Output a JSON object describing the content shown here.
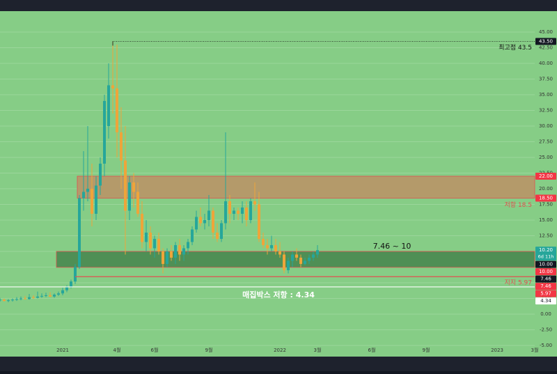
{
  "chart_data": {
    "type": "candlestick",
    "up_color": "#26a69a",
    "down_color": "#eea53a",
    "background": "#86cd86",
    "grid": true,
    "x": [
      -15,
      -14,
      -13,
      -12,
      -11,
      -10,
      -9,
      -8,
      -7,
      -6,
      -5,
      -4,
      -3,
      -2,
      -1,
      0,
      1,
      2,
      3,
      4,
      5,
      6,
      7,
      8,
      9,
      10,
      11,
      12,
      13,
      14,
      15,
      16,
      17,
      18,
      19,
      20,
      21,
      22,
      23,
      24,
      25,
      26,
      27,
      28,
      29,
      30,
      31,
      32,
      33,
      34,
      35,
      36,
      37,
      38,
      39,
      40,
      41,
      42,
      43,
      44,
      45,
      46,
      47,
      48,
      49,
      50,
      51,
      52,
      53,
      54,
      55,
      56,
      57,
      58,
      59,
      60,
      61
    ],
    "open": [
      2.2,
      2.3,
      2.1,
      2.2,
      2.3,
      2.4,
      2.5,
      2.4,
      2.7,
      2.6,
      2.8,
      2.9,
      3.0,
      2.8,
      3.1,
      3.3,
      3.8,
      4.3,
      5.2,
      7.5,
      18.5,
      19.5,
      20.0,
      16.0,
      20.5,
      24.0,
      30.0,
      36.5,
      36.0,
      29.0,
      24.5,
      16.5,
      21.0,
      19.5,
      16.0,
      11.5,
      13.0,
      10.5,
      12.0,
      10.0,
      8.0,
      10.0,
      9.0,
      11.0,
      9.5,
      10.5,
      11.5,
      13.5,
      15.5,
      14.5,
      15.0,
      16.5,
      13.0,
      12.0,
      14.5,
      18.0,
      16.0,
      16.5,
      16.0,
      17.0,
      15.0,
      18.0,
      17.5,
      12.0,
      11.0,
      10.5,
      11.0,
      10.0,
      9.5,
      7.0,
      8.5,
      9.5,
      9.0,
      8.0,
      8.5,
      9.0,
      9.5
    ],
    "high": [
      2.6,
      2.5,
      2.4,
      2.5,
      2.7,
      2.8,
      2.9,
      3.2,
      3.0,
      3.6,
      3.3,
      3.4,
      3.5,
      3.3,
      3.6,
      4.2,
      4.6,
      5.5,
      8.0,
      19.0,
      26.0,
      30.0,
      24.0,
      22.0,
      25.0,
      35.0,
      40.0,
      43.5,
      43.0,
      33.0,
      30.0,
      22.0,
      22.5,
      21.0,
      18.0,
      15.0,
      14.0,
      12.5,
      13.0,
      10.5,
      10.5,
      11.0,
      11.5,
      12.0,
      11.0,
      12.0,
      14.0,
      16.5,
      17.0,
      16.0,
      19.0,
      17.0,
      14.5,
      15.0,
      29.0,
      19.0,
      17.0,
      17.0,
      18.0,
      18.0,
      18.5,
      21.0,
      19.5,
      13.0,
      12.0,
      12.5,
      12.0,
      11.5,
      10.0,
      9.0,
      10.0,
      10.5,
      9.5,
      9.0,
      9.5,
      10.0,
      11.0
    ],
    "low": [
      2.0,
      2.0,
      1.9,
      2.0,
      2.1,
      2.2,
      2.3,
      2.3,
      2.4,
      2.5,
      2.6,
      2.7,
      2.7,
      2.6,
      2.9,
      3.0,
      3.5,
      4.1,
      4.8,
      7.2,
      16.5,
      18.0,
      14.0,
      15.0,
      19.0,
      22.0,
      28.0,
      32.0,
      25.0,
      20.0,
      9.5,
      15.0,
      17.0,
      15.5,
      10.5,
      10.0,
      9.5,
      9.0,
      9.5,
      6.5,
      7.5,
      8.5,
      8.0,
      8.5,
      8.5,
      9.5,
      11.0,
      13.0,
      14.0,
      13.5,
      14.0,
      12.0,
      11.5,
      11.5,
      13.5,
      14.5,
      15.0,
      15.0,
      14.5,
      14.0,
      14.5,
      16.5,
      11.5,
      10.5,
      9.5,
      10.0,
      9.5,
      9.0,
      6.5,
      6.5,
      7.5,
      8.5,
      7.5,
      7.8,
      8.0,
      8.5,
      9.0
    ],
    "close": [
      2.3,
      2.1,
      2.2,
      2.3,
      2.4,
      2.5,
      2.4,
      2.7,
      2.6,
      2.8,
      2.9,
      3.0,
      2.8,
      3.1,
      3.3,
      3.8,
      4.3,
      5.2,
      7.5,
      18.5,
      19.5,
      20.0,
      16.0,
      20.5,
      24.0,
      34.0,
      36.5,
      36.0,
      29.0,
      24.5,
      16.5,
      21.0,
      19.5,
      16.0,
      11.5,
      13.0,
      10.5,
      12.0,
      10.0,
      8.0,
      10.0,
      9.0,
      11.0,
      9.5,
      10.5,
      11.5,
      13.5,
      15.5,
      14.5,
      15.0,
      16.5,
      13.0,
      12.0,
      14.5,
      18.0,
      16.0,
      16.5,
      16.0,
      17.0,
      15.0,
      18.0,
      17.5,
      12.0,
      11.0,
      10.5,
      11.0,
      10.0,
      9.5,
      7.0,
      8.5,
      9.5,
      9.0,
      8.0,
      8.5,
      9.0,
      9.5,
      10.2
    ],
    "xlim": [
      -15,
      113
    ],
    "xticks": [
      {
        "value": 0,
        "label": "2021"
      },
      {
        "value": 13,
        "label": "4월"
      },
      {
        "value": 22,
        "label": "6월"
      },
      {
        "value": 35,
        "label": "9월"
      },
      {
        "value": 52,
        "label": "2022"
      },
      {
        "value": 61,
        "label": "3월"
      },
      {
        "value": 74,
        "label": "6월"
      },
      {
        "value": 87,
        "label": "9월"
      },
      {
        "value": 104,
        "label": "2023"
      },
      {
        "value": 113,
        "label": "3월"
      }
    ],
    "ylim": [
      -6.78,
      48.33
    ],
    "yticks": [
      {
        "value": -5,
        "label": "-5.00"
      },
      {
        "value": -2.5,
        "label": "-2.50"
      },
      {
        "value": 0,
        "label": "0.00"
      },
      {
        "value": 2.5,
        "label": "2.50"
      },
      {
        "value": 5,
        "label": "5.00"
      },
      {
        "value": 7.5,
        "label": "7.50"
      },
      {
        "value": 10,
        "label": "10.00"
      },
      {
        "value": 12.5,
        "label": "12.50"
      },
      {
        "value": 15,
        "label": "15.00"
      },
      {
        "value": 17.5,
        "label": "17.50"
      },
      {
        "value": 20,
        "label": "20.00"
      },
      {
        "value": 22.5,
        "label": "22.50"
      },
      {
        "value": 25,
        "label": "25.00"
      },
      {
        "value": 27.5,
        "label": "27.50"
      },
      {
        "value": 30,
        "label": "30.00"
      },
      {
        "value": 32.5,
        "label": "32.50"
      },
      {
        "value": 35,
        "label": "35.00"
      },
      {
        "value": 37.5,
        "label": "37.50"
      },
      {
        "value": 40,
        "label": "40.00"
      },
      {
        "value": 42.5,
        "label": "42.50"
      },
      {
        "value": 45,
        "label": "45.00"
      }
    ],
    "zones": [
      {
        "low": 18.5,
        "high": 22,
        "start": 4,
        "color": "#b49a6a",
        "border": "#e05050",
        "text": "저항 18.5",
        "text_color": "#e05050"
      },
      {
        "low": 7.46,
        "high": 10,
        "start": -1,
        "color": "#4f8f55",
        "border": "#e05050",
        "text": "7.46 ~ 10",
        "text_color": "#111111"
      }
    ],
    "levels": [
      {
        "value": 43.5,
        "start": 12,
        "color": "#111111",
        "style": "dotted",
        "text": "최고점 43.5",
        "text_color": "#111111",
        "text_position": "right"
      },
      {
        "value": 5.97,
        "start": 3,
        "color": "#e05050",
        "style": "solid",
        "text": "지지 5.97",
        "text_color": "#e05050",
        "text_position": "right"
      },
      {
        "value": 4.34,
        "start": -15,
        "color": "#ffffff",
        "style": "solid",
        "text": "매집박스 저항 : 4.34",
        "text_color": "#ffffff",
        "text_position": "center"
      }
    ],
    "price_labels": [
      {
        "value": 43.5,
        "label": "43.50",
        "color": "#131722",
        "text_color": "#ffffff"
      },
      {
        "value": 22,
        "label": "22.00",
        "color": "#f23645",
        "text_color": "#ffffff"
      },
      {
        "value": 18.5,
        "label": "18.50",
        "color": "#f23645",
        "text_color": "#ffffff"
      },
      {
        "value": 10.2,
        "label": "10.20",
        "sublabel": "6d 11h",
        "color": "#26a69a",
        "text_color": "#ffffff"
      },
      {
        "value": 10,
        "label": "10.00",
        "color": "#131722",
        "text_color": "#ffffff"
      },
      {
        "value": 10,
        "label": "10.00",
        "color": "#f23645",
        "text_color": "#ffffff"
      },
      {
        "value": 7.46,
        "label": "7.46",
        "color": "#131722",
        "text_color": "#ffffff"
      },
      {
        "value": 7.46,
        "label": "7.46",
        "color": "#f23645",
        "text_color": "#ffffff"
      },
      {
        "value": 5.97,
        "label": "5.97",
        "color": "#f23645",
        "text_color": "#ffffff"
      },
      {
        "value": 4.34,
        "label": "4.34",
        "color": "#ffffff",
        "text_color": "#131722"
      }
    ]
  }
}
